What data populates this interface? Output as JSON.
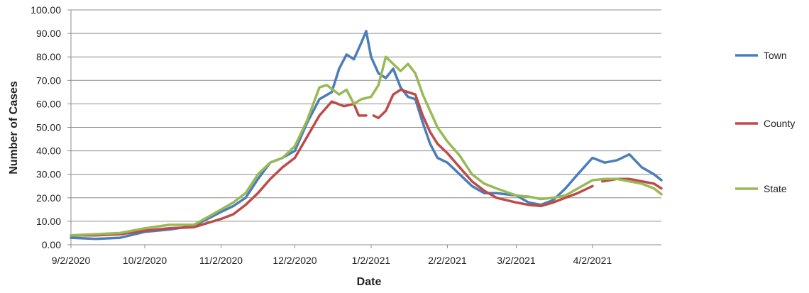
{
  "chart_data": {
    "type": "line",
    "title": "",
    "xlabel": "Date",
    "ylabel": "Number of Cases",
    "ylim": [
      0,
      100
    ],
    "xlim": [
      "2020-09-02",
      "2021-04-30"
    ],
    "y_ticks": [
      "0.00",
      "10.00",
      "20.00",
      "30.00",
      "40.00",
      "50.00",
      "60.00",
      "70.00",
      "80.00",
      "90.00",
      "100.00"
    ],
    "x_ticks": [
      {
        "label": "9/2/2020",
        "date": "2020-09-02"
      },
      {
        "label": "10/2/2020",
        "date": "2020-10-02"
      },
      {
        "label": "11/2/2020",
        "date": "2020-11-02"
      },
      {
        "label": "12/2/2020",
        "date": "2020-12-02"
      },
      {
        "label": "1/2/2021",
        "date": "2021-01-02"
      },
      {
        "label": "2/2/2021",
        "date": "2021-02-02"
      },
      {
        "label": "3/2/2021",
        "date": "2021-03-02"
      },
      {
        "label": "4/2/2021",
        "date": "2021-04-02"
      }
    ],
    "grid": "horizontal",
    "legend_position": "right",
    "series": [
      {
        "name": "Town",
        "color": "#4a7ebb",
        "points": [
          [
            "2020-09-02",
            3
          ],
          [
            "2020-09-12",
            2.5
          ],
          [
            "2020-09-22",
            3
          ],
          [
            "2020-10-02",
            5.5
          ],
          [
            "2020-10-12",
            6.5
          ],
          [
            "2020-10-22",
            8
          ],
          [
            "2020-11-02",
            14
          ],
          [
            "2020-11-07",
            16.5
          ],
          [
            "2020-11-12",
            20
          ],
          [
            "2020-11-17",
            28
          ],
          [
            "2020-11-22",
            35
          ],
          [
            "2020-11-27",
            37
          ],
          [
            "2020-12-02",
            40
          ],
          [
            "2020-12-07",
            52
          ],
          [
            "2020-12-12",
            62
          ],
          [
            "2020-12-17",
            65
          ],
          [
            "2020-12-20",
            75
          ],
          [
            "2020-12-23",
            81
          ],
          [
            "2020-12-26",
            79
          ],
          [
            "2020-12-29",
            86
          ],
          [
            "2020-12-31",
            91
          ],
          [
            "2021-01-02",
            80
          ],
          [
            "2021-01-05",
            73
          ],
          [
            "2021-01-08",
            71
          ],
          [
            "2021-01-11",
            75
          ],
          [
            "2021-01-14",
            67
          ],
          [
            "2021-01-17",
            63
          ],
          [
            "2021-01-20",
            62
          ],
          [
            "2021-01-23",
            52
          ],
          [
            "2021-01-26",
            43
          ],
          [
            "2021-01-29",
            37
          ],
          [
            "2021-02-02",
            35
          ],
          [
            "2021-02-07",
            30
          ],
          [
            "2021-02-12",
            25
          ],
          [
            "2021-02-17",
            22
          ],
          [
            "2021-02-22",
            22
          ],
          [
            "2021-03-02",
            21
          ],
          [
            "2021-03-07",
            18
          ],
          [
            "2021-03-12",
            17
          ],
          [
            "2021-03-17",
            19
          ],
          [
            "2021-03-22",
            24
          ],
          [
            "2021-03-27",
            30
          ],
          [
            "2021-04-02",
            37
          ],
          [
            "2021-04-07",
            35
          ],
          [
            "2021-04-12",
            36
          ],
          [
            "2021-04-17",
            38.5
          ],
          [
            "2021-04-22",
            33
          ],
          [
            "2021-04-27",
            30
          ],
          [
            "2021-04-30",
            27.5
          ]
        ]
      },
      {
        "name": "County",
        "color": "#be4b48",
        "points": [
          [
            "2020-09-02",
            4
          ],
          [
            "2020-09-12",
            4
          ],
          [
            "2020-09-22",
            4.5
          ],
          [
            "2020-10-02",
            6
          ],
          [
            "2020-10-12",
            7
          ],
          [
            "2020-10-22",
            7.5
          ],
          [
            "2020-11-02",
            11
          ],
          [
            "2020-11-07",
            13
          ],
          [
            "2020-11-12",
            17
          ],
          [
            "2020-11-17",
            22
          ],
          [
            "2020-11-22",
            28
          ],
          [
            "2020-11-27",
            33
          ],
          [
            "2020-12-02",
            37
          ],
          [
            "2020-12-07",
            46
          ],
          [
            "2020-12-12",
            55
          ],
          [
            "2020-12-17",
            61
          ],
          [
            "2020-12-22",
            59
          ],
          [
            "2020-12-26",
            60
          ],
          [
            "2020-12-28",
            55
          ],
          [
            "2020-12-31",
            55
          ],
          [
            "2021-01-02",
            null
          ],
          [
            "2021-01-03",
            55
          ],
          [
            "2021-01-05",
            54
          ],
          [
            "2021-01-08",
            57
          ],
          [
            "2021-01-11",
            64
          ],
          [
            "2021-01-14",
            66
          ],
          [
            "2021-01-17",
            65
          ],
          [
            "2021-01-20",
            64
          ],
          [
            "2021-01-23",
            55
          ],
          [
            "2021-01-26",
            48
          ],
          [
            "2021-01-29",
            43
          ],
          [
            "2021-02-02",
            39
          ],
          [
            "2021-02-07",
            33
          ],
          [
            "2021-02-12",
            27
          ],
          [
            "2021-02-17",
            23
          ],
          [
            "2021-02-22",
            20
          ],
          [
            "2021-03-02",
            18
          ],
          [
            "2021-03-07",
            17
          ],
          [
            "2021-03-12",
            16.5
          ],
          [
            "2021-03-17",
            18
          ],
          [
            "2021-03-22",
            20
          ],
          [
            "2021-03-27",
            22
          ],
          [
            "2021-04-02",
            25
          ],
          [
            "2021-04-05",
            null
          ],
          [
            "2021-04-06",
            27
          ],
          [
            "2021-04-12",
            28
          ],
          [
            "2021-04-17",
            28
          ],
          [
            "2021-04-22",
            27
          ],
          [
            "2021-04-27",
            26
          ],
          [
            "2021-04-30",
            24
          ]
        ]
      },
      {
        "name": "State",
        "color": "#98b954",
        "points": [
          [
            "2020-09-02",
            4
          ],
          [
            "2020-09-12",
            4.5
          ],
          [
            "2020-09-22",
            5
          ],
          [
            "2020-10-02",
            7
          ],
          [
            "2020-10-12",
            8.5
          ],
          [
            "2020-10-22",
            8.5
          ],
          [
            "2020-11-02",
            15
          ],
          [
            "2020-11-07",
            18
          ],
          [
            "2020-11-12",
            22
          ],
          [
            "2020-11-17",
            30
          ],
          [
            "2020-11-22",
            35
          ],
          [
            "2020-11-27",
            37
          ],
          [
            "2020-12-02",
            42
          ],
          [
            "2020-12-07",
            53
          ],
          [
            "2020-12-12",
            67
          ],
          [
            "2020-12-15",
            68
          ],
          [
            "2020-12-20",
            64
          ],
          [
            "2020-12-23",
            66
          ],
          [
            "2020-12-26",
            60
          ],
          [
            "2020-12-29",
            62
          ],
          [
            "2021-01-02",
            63
          ],
          [
            "2021-01-05",
            68
          ],
          [
            "2021-01-08",
            80
          ],
          [
            "2021-01-11",
            77
          ],
          [
            "2021-01-14",
            74
          ],
          [
            "2021-01-17",
            77
          ],
          [
            "2021-01-20",
            73
          ],
          [
            "2021-01-23",
            64
          ],
          [
            "2021-01-26",
            57
          ],
          [
            "2021-01-29",
            50
          ],
          [
            "2021-02-02",
            44
          ],
          [
            "2021-02-07",
            38
          ],
          [
            "2021-02-12",
            30
          ],
          [
            "2021-02-17",
            26
          ],
          [
            "2021-02-22",
            24
          ],
          [
            "2021-03-02",
            21
          ],
          [
            "2021-03-07",
            20.5
          ],
          [
            "2021-03-12",
            19.5
          ],
          [
            "2021-03-17",
            20
          ],
          [
            "2021-03-22",
            21
          ],
          [
            "2021-03-27",
            24
          ],
          [
            "2021-04-02",
            27.5
          ],
          [
            "2021-04-07",
            28
          ],
          [
            "2021-04-12",
            28
          ],
          [
            "2021-04-17",
            27
          ],
          [
            "2021-04-22",
            26
          ],
          [
            "2021-04-27",
            24
          ],
          [
            "2021-04-30",
            21.5
          ]
        ]
      }
    ]
  }
}
